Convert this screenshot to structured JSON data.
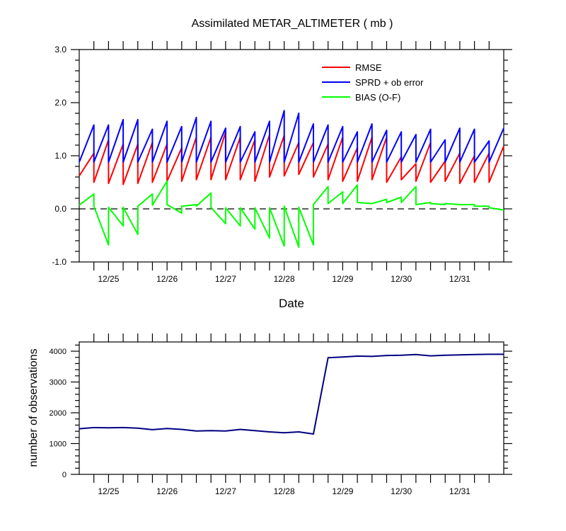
{
  "chart_data": [
    {
      "type": "line",
      "title": "Assimilated METAR_ALTIMETER ( mb )",
      "xlabel": "Date",
      "ylabel": "",
      "xlim": [
        0.0,
        7.25
      ],
      "ylim": [
        -1.0,
        3.0
      ],
      "x_tick_labels": [
        "12/25",
        "12/26",
        "12/27",
        "12/28",
        "12/29",
        "12/30",
        "12/31"
      ],
      "x_tick_values": [
        0.5,
        1.5,
        2.5,
        3.5,
        4.5,
        5.5,
        6.5
      ],
      "y_tick_labels": [
        "-1.0",
        "0.0",
        "1.0",
        "2.0",
        "3.0"
      ],
      "y_tick_values": [
        -1.0,
        0.0,
        1.0,
        2.0,
        3.0
      ],
      "reference_line_y": 0.0,
      "legend_position": "top-right",
      "x": [
        0.0,
        0.25,
        0.25,
        0.5,
        0.5,
        0.75,
        0.75,
        1.0,
        1.0,
        1.25,
        1.25,
        1.5,
        1.5,
        1.75,
        1.75,
        2.0,
        2.0,
        2.25,
        2.25,
        2.5,
        2.5,
        2.75,
        2.75,
        3.0,
        3.0,
        3.25,
        3.25,
        3.5,
        3.5,
        3.75,
        3.75,
        4.0,
        4.0,
        4.25,
        4.25,
        4.5,
        4.5,
        4.75,
        4.75,
        5.0,
        5.0,
        5.25,
        5.25,
        5.5,
        5.5,
        5.75,
        5.75,
        6.0,
        6.0,
        6.25,
        6.25,
        6.5,
        6.5,
        6.75,
        6.75,
        7.0,
        7.0,
        7.25
      ],
      "series": [
        {
          "name": "RMSE",
          "color": "#ff0000",
          "values": [
            0.62,
            1.05,
            0.5,
            1.3,
            0.48,
            1.22,
            0.46,
            1.22,
            0.48,
            1.25,
            0.5,
            1.22,
            0.52,
            1.15,
            0.52,
            1.35,
            0.55,
            1.35,
            0.55,
            1.45,
            0.55,
            1.35,
            0.55,
            1.3,
            0.52,
            1.4,
            0.6,
            1.38,
            0.62,
            1.25,
            0.65,
            1.25,
            0.6,
            1.22,
            0.55,
            1.35,
            0.52,
            1.15,
            0.52,
            1.35,
            0.55,
            1.35,
            0.5,
            0.98,
            0.55,
            0.85,
            0.52,
            1.25,
            0.5,
            0.9,
            0.52,
            1.05,
            0.48,
            1.0,
            0.5,
            1.05,
            0.5,
            1.18
          ]
        },
        {
          "name": "SPRD + ob error",
          "color": "#0000ff",
          "values": [
            0.88,
            1.58,
            0.88,
            1.58,
            0.88,
            1.68,
            0.88,
            1.68,
            0.88,
            1.5,
            0.88,
            1.65,
            0.88,
            1.55,
            0.88,
            1.72,
            0.88,
            1.65,
            0.88,
            1.52,
            0.88,
            1.55,
            0.88,
            1.45,
            0.88,
            1.65,
            0.88,
            1.85,
            0.88,
            1.8,
            0.88,
            1.6,
            0.88,
            1.58,
            0.88,
            1.55,
            0.88,
            1.45,
            0.88,
            1.6,
            0.88,
            1.48,
            0.88,
            1.45,
            0.88,
            1.4,
            0.88,
            1.5,
            0.88,
            1.3,
            0.88,
            1.52,
            0.88,
            1.5,
            0.88,
            1.28,
            0.88,
            1.52
          ]
        },
        {
          "name": "BIAS (O-F)",
          "color": "#00ff00",
          "values": [
            0.07,
            0.28,
            0.05,
            -0.68,
            0.03,
            -0.32,
            0.03,
            -0.48,
            0.05,
            0.28,
            0.07,
            0.52,
            0.08,
            -0.08,
            0.05,
            0.08,
            0.05,
            0.3,
            0.03,
            -0.28,
            0.02,
            -0.32,
            0.02,
            -0.38,
            0.02,
            -0.55,
            0.02,
            -0.7,
            0.05,
            -0.72,
            0.03,
            -0.68,
            0.08,
            0.42,
            0.1,
            0.32,
            0.1,
            0.45,
            0.12,
            0.1,
            0.1,
            0.18,
            0.12,
            0.22,
            0.12,
            0.42,
            0.08,
            0.12,
            0.1,
            0.08,
            0.1,
            0.08,
            0.08,
            0.08,
            0.05,
            0.05,
            0.02,
            -0.02
          ]
        }
      ]
    },
    {
      "type": "line",
      "title": "",
      "xlabel": "",
      "ylabel": "number of observations",
      "xlim": [
        0.0,
        7.25
      ],
      "ylim": [
        0,
        4300
      ],
      "x_tick_labels": [
        "12/25",
        "12/26",
        "12/27",
        "12/28",
        "12/29",
        "12/30",
        "12/31"
      ],
      "x_tick_values": [
        0.5,
        1.5,
        2.5,
        3.5,
        4.5,
        5.5,
        6.5
      ],
      "y_tick_labels": [
        "0",
        "1000",
        "2000",
        "3000",
        "4000"
      ],
      "y_tick_values": [
        0,
        1000,
        2000,
        3000,
        4000
      ],
      "x": [
        0.0,
        0.25,
        0.5,
        0.75,
        1.0,
        1.25,
        1.5,
        1.75,
        2.0,
        2.25,
        2.5,
        2.75,
        3.0,
        3.25,
        3.5,
        3.75,
        4.0,
        4.25,
        4.5,
        4.75,
        5.0,
        5.25,
        5.5,
        5.75,
        6.0,
        6.25,
        6.5,
        6.75,
        7.0,
        7.25
      ],
      "series": [
        {
          "color": "#000080",
          "values": [
            1480,
            1520,
            1510,
            1520,
            1500,
            1450,
            1490,
            1460,
            1410,
            1420,
            1410,
            1460,
            1420,
            1380,
            1350,
            1380,
            1310,
            3790,
            3810,
            3840,
            3830,
            3860,
            3870,
            3890,
            3850,
            3870,
            3880,
            3890,
            3900,
            3900
          ]
        }
      ]
    }
  ]
}
